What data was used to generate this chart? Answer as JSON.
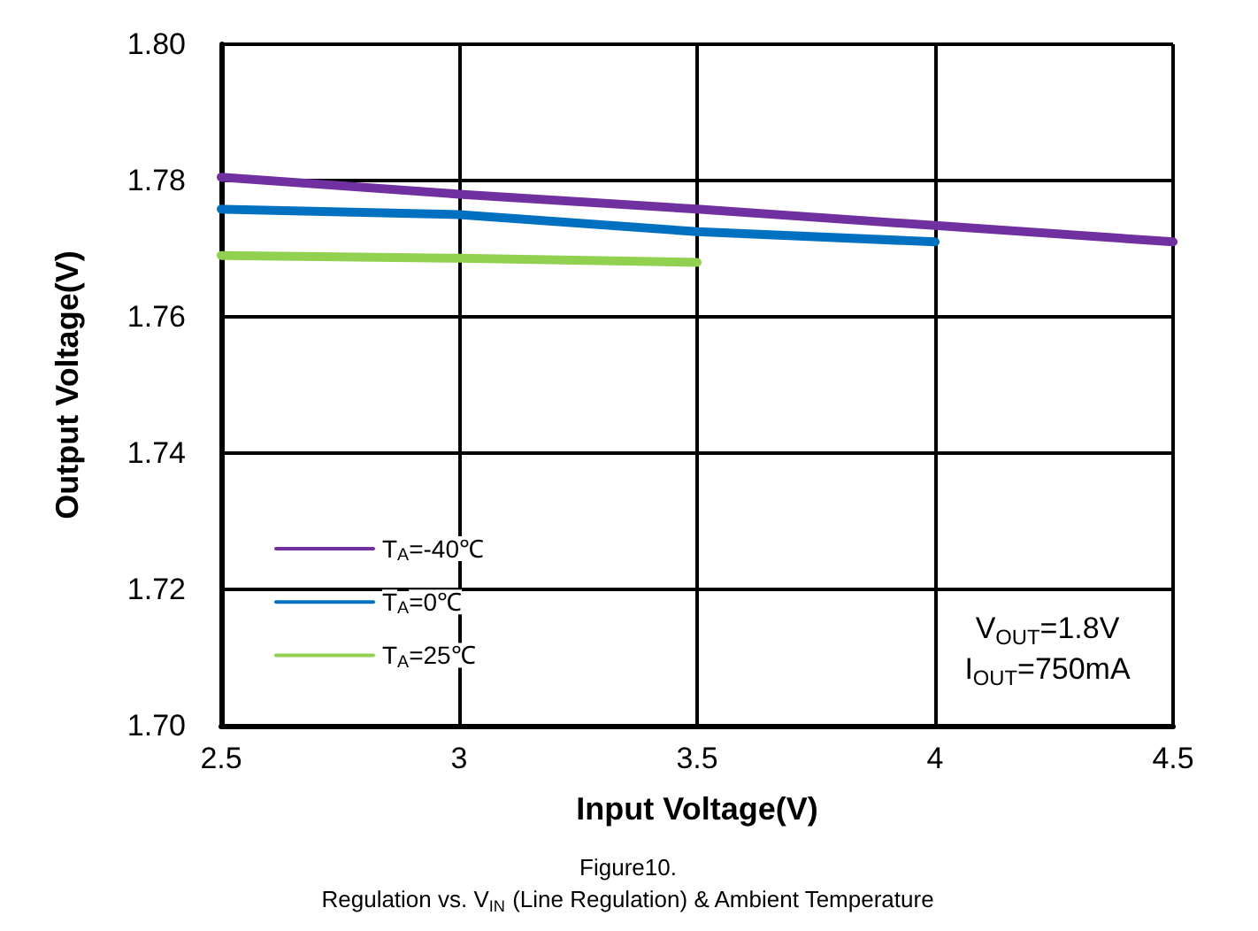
{
  "chart_data": {
    "type": "line",
    "xlabel": "Input Voltage(V)",
    "ylabel": "Output Voltage(V)",
    "x": [
      2.5,
      3,
      3.5,
      4,
      4.5
    ],
    "series": [
      {
        "name": "T$_{A}$=-40℃",
        "color": "#7030a0",
        "values": [
          1.7805,
          1.778,
          1.7758,
          1.7734,
          1.771
        ]
      },
      {
        "name": "T$_{A}$=0℃",
        "color": "#0070c0",
        "values": [
          1.7758,
          1.775,
          1.7725,
          1.771,
          null
        ]
      },
      {
        "name": "T$_{A}$=25℃",
        "color": "#92d050",
        "values": [
          1.769,
          1.7686,
          1.768,
          null,
          null
        ]
      }
    ],
    "xlim": [
      2.5,
      4.5
    ],
    "xticks": [
      2.5,
      3,
      3.5,
      4,
      4.5
    ],
    "ylim": [
      1.7,
      1.8
    ],
    "yticks": [
      {
        "value": 1.7,
        "label": "1.70"
      },
      {
        "value": 1.72,
        "label": "1.72"
      },
      {
        "value": 1.74,
        "label": "1.74"
      },
      {
        "value": 1.76,
        "label": "1.76"
      },
      {
        "value": 1.78,
        "label": "1.78"
      },
      {
        "value": 1.8,
        "label": "1.80"
      }
    ],
    "grid": true,
    "legend": "bottom left",
    "marker": "none",
    "line_style": "solid",
    "annotations": [
      "V$_{OUT}$=1.8V",
      "I$_{OUT}$=750mA",
      "Figure10.",
      "Regulation vs. V$_{IN}$ (Line Regulation) & Ambient Temperature"
    ]
  }
}
